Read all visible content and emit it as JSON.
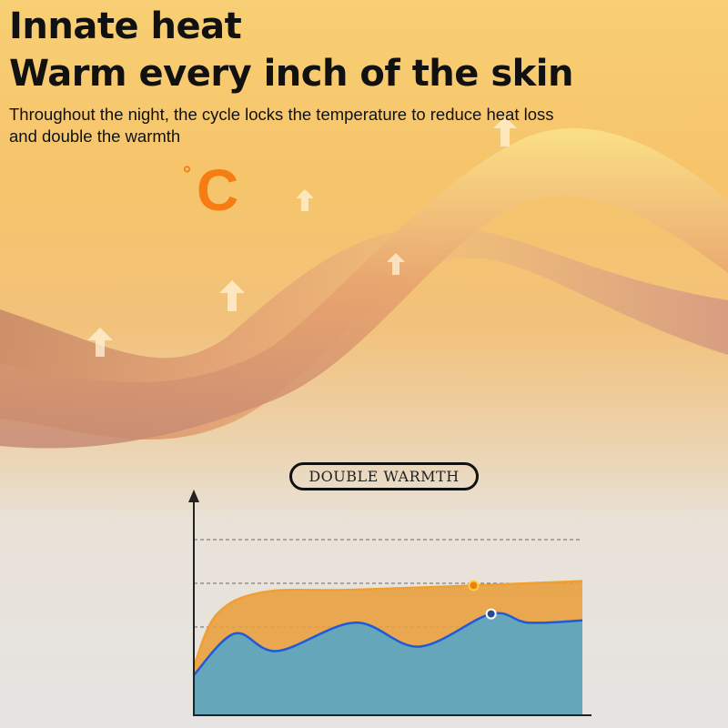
{
  "header": {
    "title_line1": "Innate heat",
    "title_line2": "Warm every inch of the skin",
    "subtitle": "Throughout the night, the cycle locks the temperature to reduce heat loss and double the warmth"
  },
  "temperature_badge": {
    "degree": "°",
    "unit": "C",
    "color": "#f57d12"
  },
  "icons": [
    "up-arrow-icon",
    "temperature-celsius-icon"
  ],
  "chart_label": "DOUBLE WARMTH",
  "chart_data": {
    "type": "area",
    "title": "DOUBLE WARMTH",
    "xlabel": "",
    "ylabel": "",
    "xlim": [
      0,
      10
    ],
    "ylim": [
      0,
      5
    ],
    "grid": "dashed horizontal",
    "legend": "none",
    "series": [
      {
        "color": "#f0a030",
        "fill": "#e9a040",
        "x": [
          0,
          0.6,
          1.8,
          4,
          7.2,
          10
        ],
        "values": [
          1.1,
          2.3,
          2.8,
          2.85,
          2.95,
          3.05
        ],
        "marker_x": 7.2
      },
      {
        "color": "#1f5bd8",
        "fill": "#5fa5c0",
        "x": [
          0,
          1.05,
          2.15,
          4.15,
          5.8,
          7.65,
          8.6,
          10
        ],
        "values": [
          0.9,
          1.85,
          1.45,
          2.1,
          1.55,
          2.3,
          2.1,
          2.15
        ],
        "marker_x": 7.65
      }
    ]
  }
}
